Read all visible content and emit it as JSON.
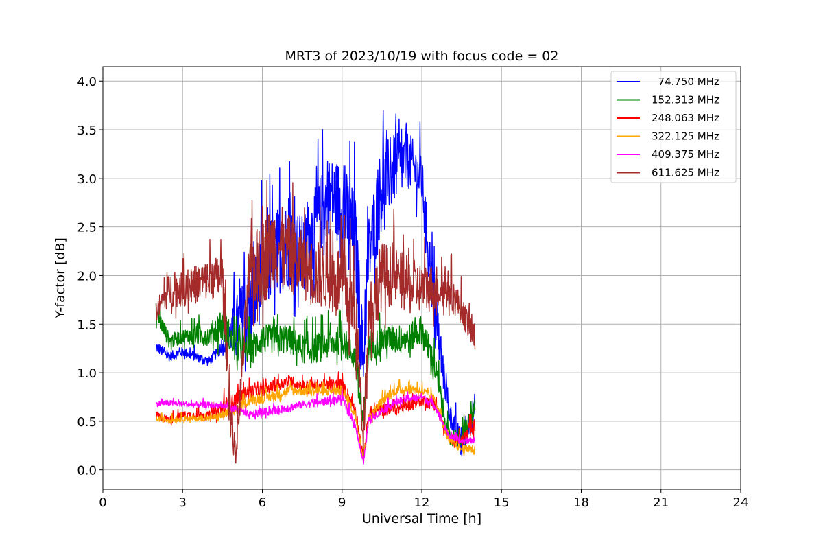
{
  "chart_data": {
    "type": "line",
    "title": "MRT3 of 2023/10/19 with focus code = 02",
    "xlabel": "Universal Time [h]",
    "ylabel": "Y-factor [dB]",
    "xlim": [
      0,
      24
    ],
    "ylim": [
      -0.2,
      4.15
    ],
    "xticks": [
      0,
      3,
      6,
      9,
      12,
      15,
      18,
      21,
      24
    ],
    "yticks": [
      0.0,
      0.5,
      1.0,
      1.5,
      2.0,
      2.5,
      3.0,
      3.5,
      4.0
    ],
    "ytick_labels": [
      "0.0",
      "0.5",
      "1.0",
      "1.5",
      "2.0",
      "2.5",
      "3.0",
      "3.5",
      "4.0"
    ],
    "grid": true,
    "legend_position": "top-right",
    "series": [
      {
        "name": "  74.750 MHz",
        "color": "#0000ff",
        "x": [
          2.0,
          2.5,
          3.0,
          3.5,
          4.0,
          4.5,
          5.0,
          5.5,
          6.0,
          6.5,
          7.0,
          7.5,
          8.0,
          8.5,
          9.0,
          9.5,
          9.8,
          10.0,
          10.5,
          11.0,
          11.5,
          12.0,
          12.5,
          13.0,
          13.5,
          14.0
        ],
        "y": [
          1.25,
          1.15,
          1.2,
          1.15,
          1.1,
          1.25,
          1.4,
          1.5,
          1.9,
          2.1,
          2.2,
          2.1,
          2.4,
          2.7,
          2.6,
          2.2,
          1.0,
          2.1,
          2.8,
          3.0,
          3.1,
          2.9,
          1.5,
          0.6,
          0.2,
          0.6
        ],
        "amp": [
          0.12,
          0.1,
          0.1,
          0.1,
          0.1,
          0.1,
          0.6,
          0.9,
          0.9,
          0.9,
          0.9,
          0.8,
          0.8,
          0.8,
          0.9,
          1.0,
          0.7,
          0.8,
          0.9,
          0.7,
          0.6,
          0.5,
          0.6,
          0.2,
          0.3,
          0.3
        ]
      },
      {
        "name": "152.313 MHz",
        "color": "#008000",
        "x": [
          2.0,
          2.5,
          3.0,
          3.5,
          4.0,
          4.5,
          5.0,
          5.5,
          6.0,
          6.5,
          7.0,
          7.5,
          8.0,
          8.5,
          9.0,
          9.5,
          9.8,
          10.0,
          10.5,
          11.0,
          11.5,
          12.0,
          12.5,
          13.0,
          13.5,
          14.0
        ],
        "y": [
          1.6,
          1.3,
          1.35,
          1.35,
          1.35,
          1.45,
          1.2,
          1.2,
          1.3,
          1.3,
          1.3,
          1.2,
          1.2,
          1.25,
          1.3,
          1.1,
          0.4,
          1.2,
          1.3,
          1.3,
          1.3,
          1.4,
          1.0,
          0.3,
          0.3,
          0.6
        ],
        "amp": [
          0.2,
          0.15,
          0.15,
          0.2,
          0.2,
          0.4,
          0.3,
          0.3,
          0.3,
          0.3,
          0.3,
          0.3,
          0.3,
          0.3,
          0.3,
          0.3,
          0.3,
          0.3,
          0.3,
          0.3,
          0.3,
          0.3,
          0.3,
          0.2,
          0.2,
          0.2
        ]
      },
      {
        "name": "248.063 MHz",
        "color": "#ff0000",
        "x": [
          2.0,
          2.5,
          3.0,
          3.5,
          4.0,
          4.5,
          5.0,
          5.5,
          6.0,
          6.5,
          7.0,
          7.5,
          8.0,
          8.5,
          9.0,
          9.5,
          9.8,
          10.0,
          10.5,
          11.0,
          11.5,
          12.0,
          12.5,
          13.0,
          13.5,
          14.0
        ],
        "y": [
          0.55,
          0.5,
          0.55,
          0.55,
          0.55,
          0.6,
          0.7,
          0.8,
          0.8,
          0.85,
          0.9,
          0.85,
          0.85,
          0.85,
          0.85,
          0.6,
          0.1,
          0.55,
          0.6,
          0.6,
          0.65,
          0.7,
          0.65,
          0.3,
          0.3,
          0.4
        ],
        "amp": [
          0.08,
          0.08,
          0.08,
          0.08,
          0.08,
          0.2,
          0.15,
          0.12,
          0.12,
          0.12,
          0.12,
          0.12,
          0.12,
          0.12,
          0.15,
          0.15,
          0.1,
          0.12,
          0.12,
          0.12,
          0.12,
          0.12,
          0.12,
          0.1,
          0.1,
          0.2
        ]
      },
      {
        "name": "322.125 MHz",
        "color": "#ffa500",
        "x": [
          2.0,
          2.5,
          3.0,
          3.5,
          4.0,
          4.5,
          5.0,
          5.5,
          6.0,
          6.5,
          7.0,
          7.5,
          8.0,
          8.5,
          9.0,
          9.5,
          9.8,
          10.0,
          10.5,
          11.0,
          11.5,
          12.0,
          12.5,
          13.0,
          13.5,
          14.0
        ],
        "y": [
          0.52,
          0.5,
          0.52,
          0.52,
          0.52,
          0.55,
          0.6,
          0.7,
          0.72,
          0.75,
          0.8,
          0.8,
          0.8,
          0.8,
          0.8,
          0.55,
          0.1,
          0.5,
          0.7,
          0.8,
          0.82,
          0.8,
          0.7,
          0.3,
          0.2,
          0.2
        ],
        "amp": [
          0.06,
          0.06,
          0.06,
          0.06,
          0.06,
          0.08,
          0.1,
          0.1,
          0.1,
          0.1,
          0.1,
          0.1,
          0.1,
          0.1,
          0.1,
          0.1,
          0.08,
          0.1,
          0.1,
          0.1,
          0.1,
          0.1,
          0.1,
          0.08,
          0.08,
          0.1
        ]
      },
      {
        "name": "409.375 MHz",
        "color": "#ff00ff",
        "x": [
          2.0,
          2.5,
          3.0,
          3.5,
          4.0,
          4.5,
          5.0,
          5.5,
          6.0,
          6.5,
          7.0,
          7.5,
          8.0,
          8.5,
          9.0,
          9.5,
          9.8,
          10.0,
          10.5,
          11.0,
          11.5,
          12.0,
          12.5,
          13.0,
          13.5,
          14.0
        ],
        "y": [
          0.67,
          0.68,
          0.67,
          0.66,
          0.66,
          0.65,
          0.62,
          0.55,
          0.58,
          0.6,
          0.63,
          0.66,
          0.68,
          0.7,
          0.72,
          0.45,
          0.05,
          0.5,
          0.6,
          0.68,
          0.72,
          0.74,
          0.65,
          0.35,
          0.28,
          0.3
        ],
        "amp": [
          0.06,
          0.06,
          0.06,
          0.06,
          0.06,
          0.06,
          0.08,
          0.08,
          0.08,
          0.08,
          0.08,
          0.08,
          0.08,
          0.08,
          0.08,
          0.1,
          0.05,
          0.08,
          0.08,
          0.08,
          0.08,
          0.08,
          0.08,
          0.06,
          0.06,
          0.06
        ]
      },
      {
        "name": "611.625 MHz",
        "color": "#a52a2a",
        "x": [
          2.0,
          2.5,
          3.0,
          3.5,
          4.0,
          4.5,
          4.8,
          5.0,
          5.5,
          6.0,
          6.5,
          7.0,
          7.5,
          8.0,
          8.5,
          9.0,
          9.5,
          9.8,
          10.0,
          10.5,
          11.0,
          11.5,
          12.0,
          12.5,
          13.0,
          13.5,
          14.0
        ],
        "y": [
          1.6,
          1.8,
          1.8,
          1.85,
          1.9,
          1.9,
          0.5,
          0.1,
          1.9,
          2.0,
          2.2,
          2.1,
          2.0,
          1.9,
          1.9,
          1.8,
          1.5,
          0.3,
          1.5,
          1.9,
          1.9,
          1.8,
          1.8,
          1.8,
          1.8,
          1.6,
          1.3
        ],
        "amp": [
          0.2,
          0.35,
          0.35,
          0.4,
          0.4,
          0.5,
          0.5,
          0.2,
          0.7,
          0.9,
          0.9,
          0.8,
          0.7,
          0.7,
          0.7,
          0.8,
          0.8,
          0.3,
          0.7,
          0.7,
          0.6,
          0.6,
          0.5,
          0.5,
          0.4,
          0.3,
          0.3
        ]
      }
    ]
  }
}
